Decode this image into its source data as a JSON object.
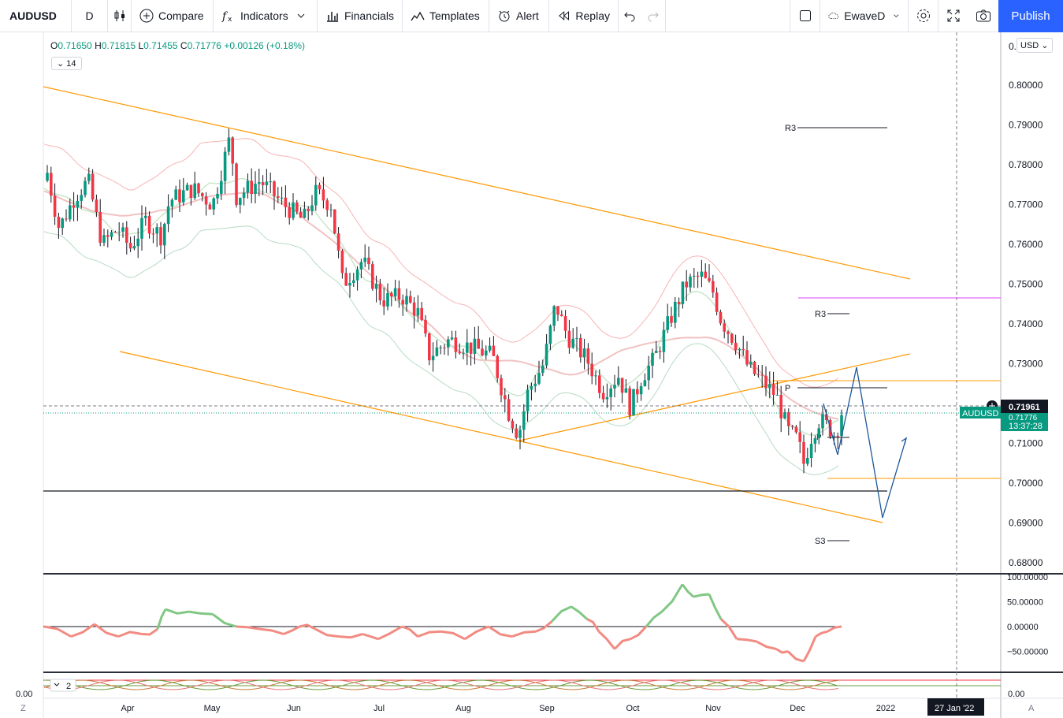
{
  "toolbar": {
    "symbol": "AUDUSD",
    "interval": "D",
    "compare": "Compare",
    "indicators": "Indicators",
    "financials": "Financials",
    "templates": "Templates",
    "alert": "Alert",
    "replay": "Replay",
    "layout_name": "EwaveD",
    "publish": "Publish"
  },
  "legend": {
    "open_label": "O",
    "open": "0.71650",
    "high_label": "H",
    "high": "0.71815",
    "low_label": "L",
    "low": "0.71455",
    "close_label": "C",
    "close": "0.71776",
    "change": "+0.00126 (+0.18%)",
    "indicator_badge": "14",
    "lower_badge": "2"
  },
  "price_axis": {
    "currency": "USD",
    "top_partial": "0.",
    "ticks": [
      "0.80000",
      "0.79000",
      "0.78000",
      "0.77000",
      "0.76000",
      "0.75000",
      "0.74000",
      "0.73000",
      "0.72000",
      "0.71000",
      "0.70000",
      "0.69000",
      "0.68000"
    ],
    "crosshair_price": "0.71961",
    "last_price_label": "AUDUSD",
    "last_price": "0.71776",
    "countdown": "13:37:28"
  },
  "osc_axis": {
    "ticks": [
      "100.00000",
      "50.00000",
      "0.00000",
      "−50.00000"
    ]
  },
  "lower_axis": {
    "right": "0.00",
    "left": "0.00"
  },
  "time_axis": {
    "months": [
      "Apr",
      "May",
      "Jun",
      "Jul",
      "Aug",
      "Sep",
      "Oct",
      "Nov",
      "Dec",
      "2022"
    ],
    "crosshair_date": "27 Jan '22",
    "left_letter": "Z",
    "right_letter": "A"
  },
  "pivots": {
    "r3_upper": "R3",
    "r3_lower": "R3",
    "p": "P",
    "p_small": "P",
    "s3": "S3"
  },
  "colors": {
    "up": "#089981",
    "down": "#f23645",
    "trendline": "#ff9800",
    "projection": "#1e5799",
    "magenta": "#e040fb",
    "publish": "#2962ff",
    "last_price_bg": "#089981"
  },
  "chart_data": {
    "type": "candlestick",
    "x_months": [
      "Apr",
      "May",
      "Jun",
      "Jul",
      "Aug",
      "Sep",
      "Oct",
      "Nov",
      "Dec"
    ],
    "ylim": [
      0.675,
      0.81
    ],
    "last": {
      "open": 0.7165,
      "high": 0.71815,
      "low": 0.71455,
      "close": 0.71776
    },
    "osc_ylim": [
      -100,
      100
    ]
  }
}
